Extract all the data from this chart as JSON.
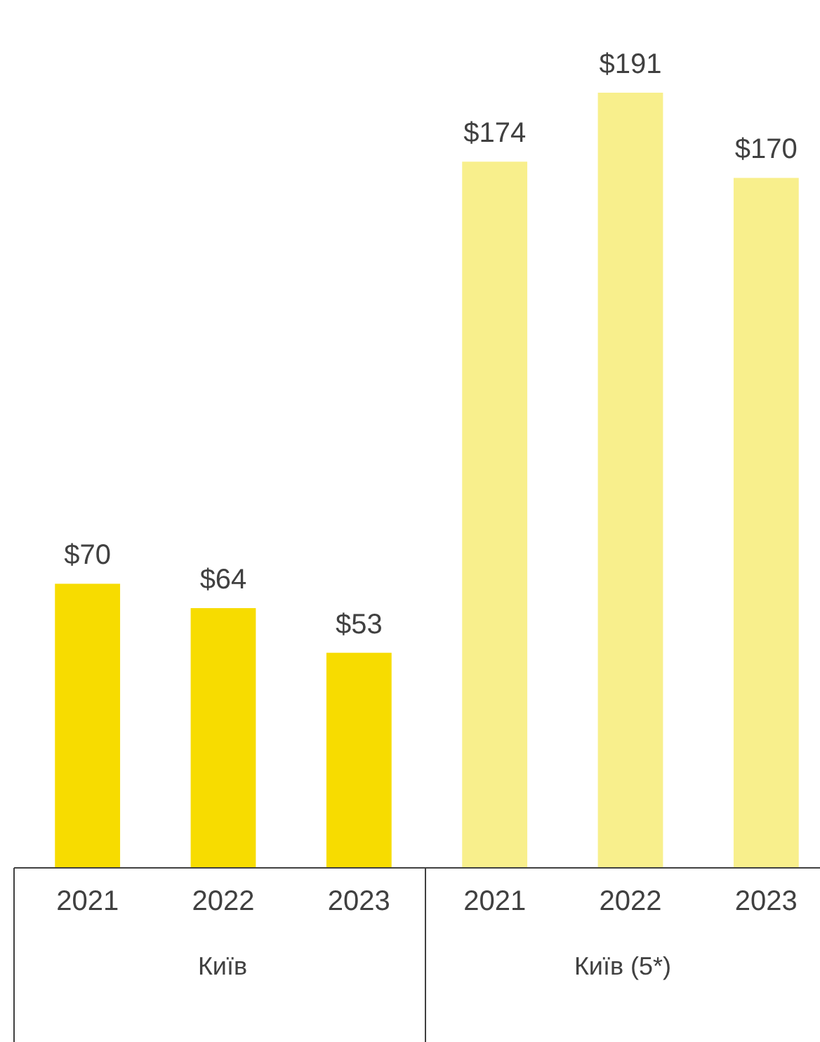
{
  "chart_data": {
    "type": "bar",
    "categories": [
      "2021",
      "2022",
      "2023",
      "2021",
      "2022",
      "2023"
    ],
    "series": [
      {
        "color": "#f7dc00",
        "values": [
          70,
          64,
          53,
          null,
          null,
          null
        ],
        "value_labels": [
          "$70",
          "$64",
          "$53",
          null,
          null,
          null
        ]
      },
      {
        "color": "#f8ef8c",
        "values": [
          null,
          null,
          null,
          174,
          191,
          170
        ],
        "value_labels": [
          null,
          null,
          null,
          "$174",
          "$191",
          "$170"
        ]
      }
    ],
    "annotations": [
      "Київ",
      "Київ (5*)"
    ]
  }
}
